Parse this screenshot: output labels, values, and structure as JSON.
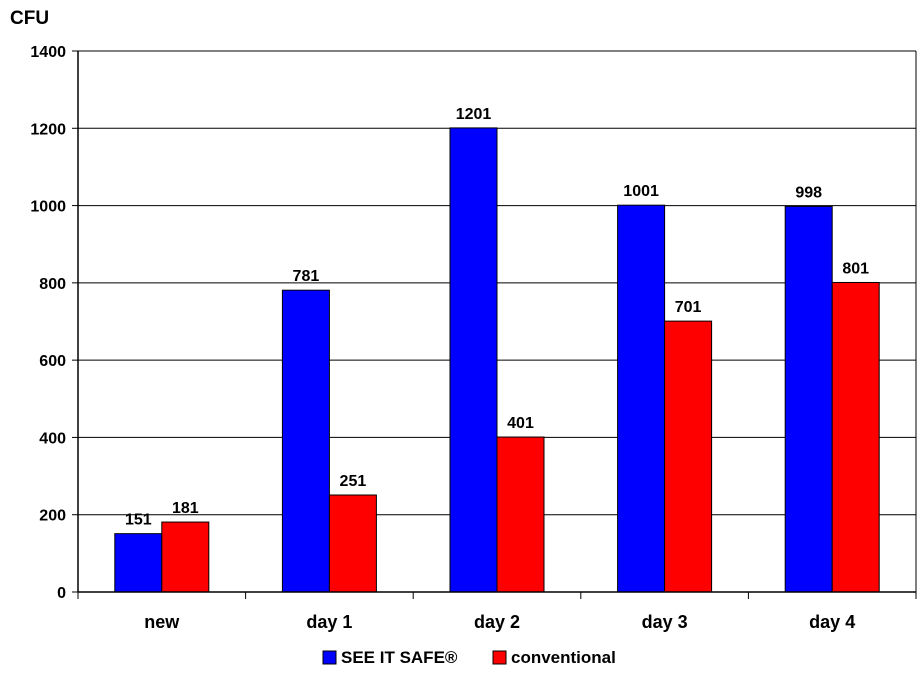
{
  "chart_data": {
    "type": "bar",
    "ylabel": "CFU",
    "xlabel": "",
    "title": "",
    "categories": [
      "new",
      "day 1",
      "day 2",
      "day 3",
      "day 4"
    ],
    "ylim": [
      0,
      1400
    ],
    "yticks": [
      0,
      200,
      400,
      600,
      800,
      1000,
      1200,
      1400
    ],
    "grid": true,
    "legend_position": "bottom",
    "series": [
      {
        "name": "SEE IT SAFE®",
        "values": [
          151,
          781,
          1201,
          1001,
          998
        ],
        "color": "#0000FF"
      },
      {
        "name": "conventional",
        "values": [
          181,
          251,
          401,
          701,
          801
        ],
        "color": "#FF0000"
      }
    ]
  }
}
